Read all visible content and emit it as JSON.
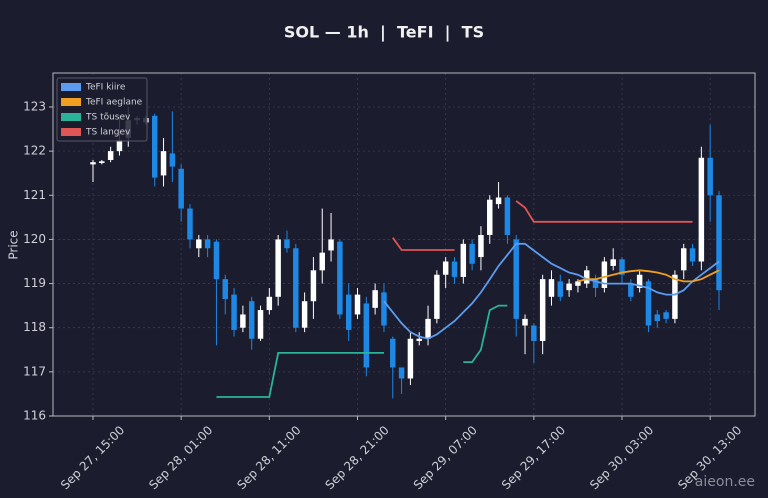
{
  "chart_data": {
    "type": "candlestick",
    "title": "SOL — 1h  |  TeFI  |  TS",
    "y_label": "Price",
    "watermark": "aieon.ee",
    "categories": [
      "Sep 27, 15:00",
      null,
      null,
      null,
      null,
      null,
      null,
      null,
      null,
      null,
      "Sep 28, 01:00",
      null,
      null,
      null,
      null,
      null,
      null,
      null,
      null,
      null,
      "Sep 28, 11:00",
      null,
      null,
      null,
      null,
      null,
      null,
      null,
      null,
      null,
      "Sep 28, 21:00",
      null,
      null,
      null,
      null,
      null,
      null,
      null,
      null,
      null,
      "Sep 29, 07:00",
      null,
      null,
      null,
      null,
      null,
      null,
      null,
      null,
      null,
      "Sep 29, 17:00",
      null,
      null,
      null,
      null,
      null,
      null,
      null,
      null,
      null,
      "Sep 30, 03:00",
      null,
      null,
      null,
      null,
      null,
      null,
      null,
      null,
      null,
      "Sep 30, 13:00",
      null
    ],
    "open": [
      121.7,
      121.73,
      121.8,
      122.0,
      122.3,
      122.7,
      122.65,
      122.8,
      121.45,
      121.95,
      121.6,
      120.7,
      119.8,
      120.0,
      119.95,
      119.1,
      118.75,
      118.0,
      118.6,
      117.75,
      118.4,
      118.7,
      120.0,
      119.8,
      118.0,
      118.6,
      119.3,
      119.75,
      119.95,
      118.75,
      118.3,
      118.55,
      118.45,
      118.8,
      117.75,
      117.1,
      116.85,
      117.7,
      117.75,
      118.2,
      119.2,
      119.5,
      119.15,
      119.9,
      119.6,
      120.1,
      120.8,
      120.95,
      120.0,
      118.05,
      118.05,
      117.7,
      118.7,
      119.05,
      118.85,
      118.95,
      119.0,
      119.1,
      118.9,
      119.4,
      119.55,
      119.0,
      118.9,
      119.05,
      118.3,
      118.35,
      118.2,
      119.3,
      119.8,
      119.5,
      121.85,
      121.0
    ],
    "high": [
      121.8,
      121.8,
      122.1,
      122.8,
      123.0,
      122.8,
      122.8,
      122.85,
      122.3,
      122.9,
      121.7,
      120.8,
      120.1,
      120.1,
      120.0,
      119.2,
      118.9,
      118.5,
      118.7,
      118.5,
      118.9,
      120.1,
      120.2,
      119.9,
      118.8,
      119.6,
      120.7,
      120.6,
      120.0,
      119.0,
      118.9,
      118.7,
      119.0,
      119.0,
      117.8,
      117.1,
      117.9,
      117.9,
      118.5,
      119.3,
      119.6,
      119.6,
      120.0,
      120.0,
      120.3,
      121.0,
      121.3,
      121.0,
      120.1,
      118.3,
      118.1,
      119.2,
      119.3,
      119.2,
      119.1,
      119.1,
      119.4,
      119.2,
      119.6,
      119.8,
      119.6,
      119.1,
      119.3,
      119.1,
      118.4,
      118.4,
      119.3,
      119.9,
      119.9,
      122.1,
      122.6,
      121.1
    ],
    "low": [
      121.3,
      121.7,
      121.75,
      121.9,
      122.1,
      122.6,
      122.6,
      121.2,
      121.2,
      121.3,
      120.4,
      119.8,
      119.6,
      119.6,
      117.6,
      118.3,
      117.8,
      117.9,
      117.5,
      117.7,
      118.3,
      118.5,
      119.7,
      117.9,
      117.9,
      118.2,
      119.0,
      119.5,
      118.2,
      117.7,
      118.2,
      116.9,
      118.3,
      117.9,
      116.4,
      116.5,
      116.7,
      117.6,
      117.6,
      118.1,
      118.9,
      119.0,
      119.0,
      119.3,
      119.3,
      119.9,
      120.7,
      119.9,
      117.8,
      117.4,
      117.2,
      117.4,
      118.5,
      118.6,
      118.7,
      118.8,
      118.9,
      118.7,
      118.8,
      119.3,
      119.0,
      118.6,
      118.8,
      117.9,
      118.0,
      118.1,
      118.1,
      119.1,
      119.4,
      119.3,
      120.4,
      118.4
    ],
    "close": [
      121.75,
      121.77,
      122.0,
      122.25,
      122.7,
      122.75,
      122.75,
      121.4,
      122.0,
      121.65,
      120.7,
      120.0,
      120.0,
      119.8,
      119.1,
      118.65,
      117.95,
      118.3,
      117.75,
      118.4,
      118.7,
      120.0,
      119.8,
      118.0,
      118.6,
      119.3,
      119.7,
      120.0,
      118.3,
      117.95,
      118.75,
      117.1,
      118.85,
      118.05,
      117.1,
      116.85,
      117.75,
      117.75,
      118.2,
      119.2,
      119.5,
      119.15,
      119.9,
      119.45,
      120.1,
      120.9,
      120.95,
      120.1,
      118.2,
      118.2,
      117.7,
      119.1,
      119.1,
      118.7,
      119.0,
      119.05,
      119.3,
      118.9,
      119.5,
      119.55,
      119.2,
      118.7,
      119.2,
      118.05,
      118.15,
      118.2,
      119.2,
      119.8,
      119.5,
      121.85,
      121.0,
      118.85
    ],
    "up_color": "#ffffff",
    "down_color": "#1e88e5",
    "series": [
      {
        "name": "TeFI kiire",
        "color": "#5b9cf0",
        "values": [
          null,
          null,
          null,
          null,
          null,
          null,
          null,
          null,
          null,
          null,
          null,
          null,
          null,
          null,
          null,
          null,
          null,
          null,
          null,
          null,
          null,
          null,
          null,
          null,
          null,
          null,
          null,
          null,
          null,
          null,
          null,
          null,
          null,
          118.6,
          118.35,
          118.1,
          117.9,
          117.8,
          117.75,
          117.85,
          118.0,
          118.15,
          118.35,
          118.55,
          118.8,
          119.1,
          119.4,
          119.65,
          119.9,
          119.9,
          119.75,
          119.6,
          119.45,
          119.35,
          119.25,
          119.2,
          119.1,
          119.05,
          119.0,
          119.0,
          119.0,
          119.0,
          118.95,
          118.9,
          118.8,
          118.75,
          118.75,
          118.85,
          119.05,
          119.2,
          119.35,
          119.5
        ]
      },
      {
        "name": "TeFI aeglane",
        "color": "#f0a020",
        "values": [
          null,
          null,
          null,
          null,
          null,
          null,
          null,
          null,
          null,
          null,
          null,
          null,
          null,
          null,
          null,
          null,
          null,
          null,
          null,
          null,
          null,
          null,
          null,
          null,
          null,
          null,
          null,
          null,
          null,
          null,
          null,
          null,
          null,
          null,
          null,
          null,
          null,
          null,
          null,
          null,
          null,
          null,
          null,
          null,
          null,
          null,
          null,
          null,
          null,
          null,
          null,
          null,
          null,
          null,
          null,
          119.05,
          119.1,
          119.1,
          119.15,
          119.2,
          119.25,
          119.28,
          119.3,
          119.28,
          119.25,
          119.2,
          119.1,
          119.05,
          119.05,
          119.1,
          119.2,
          119.3
        ]
      },
      {
        "name": "TS tõusev",
        "color": "#2bb39a",
        "values": [
          null,
          null,
          null,
          null,
          null,
          null,
          null,
          null,
          null,
          null,
          null,
          null,
          null,
          null,
          116.43,
          116.43,
          116.43,
          116.43,
          116.43,
          116.43,
          116.43,
          117.43,
          117.43,
          117.43,
          117.43,
          117.43,
          117.43,
          117.43,
          117.43,
          117.43,
          117.43,
          117.43,
          117.43,
          117.43,
          null,
          null,
          null,
          null,
          null,
          null,
          null,
          null,
          117.22,
          117.22,
          117.5,
          118.4,
          118.5,
          118.5,
          null,
          null,
          null,
          null,
          null,
          null,
          null,
          null,
          null,
          null,
          null,
          null,
          null,
          null,
          null,
          null,
          null,
          null,
          null,
          null,
          null,
          null,
          null,
          null
        ]
      },
      {
        "name": "TS langev",
        "color": "#e05555",
        "values": [
          null,
          null,
          null,
          null,
          null,
          null,
          null,
          null,
          null,
          null,
          null,
          null,
          null,
          null,
          null,
          null,
          null,
          null,
          null,
          null,
          null,
          null,
          null,
          null,
          null,
          null,
          null,
          null,
          null,
          null,
          null,
          null,
          null,
          null,
          120.04,
          119.76,
          119.76,
          119.76,
          119.76,
          119.76,
          119.76,
          119.76,
          null,
          null,
          null,
          null,
          null,
          null,
          120.87,
          120.72,
          120.4,
          120.4,
          120.4,
          120.4,
          120.4,
          120.4,
          120.4,
          120.4,
          120.4,
          120.4,
          120.4,
          120.4,
          120.4,
          120.4,
          120.4,
          120.4,
          120.4,
          120.4,
          120.4,
          null,
          null,
          null
        ]
      }
    ],
    "ylim": [
      116,
      123.77
    ],
    "yticks": [
      116,
      117,
      118,
      119,
      120,
      121,
      122,
      123
    ],
    "grid": true,
    "legend": "upper left"
  }
}
